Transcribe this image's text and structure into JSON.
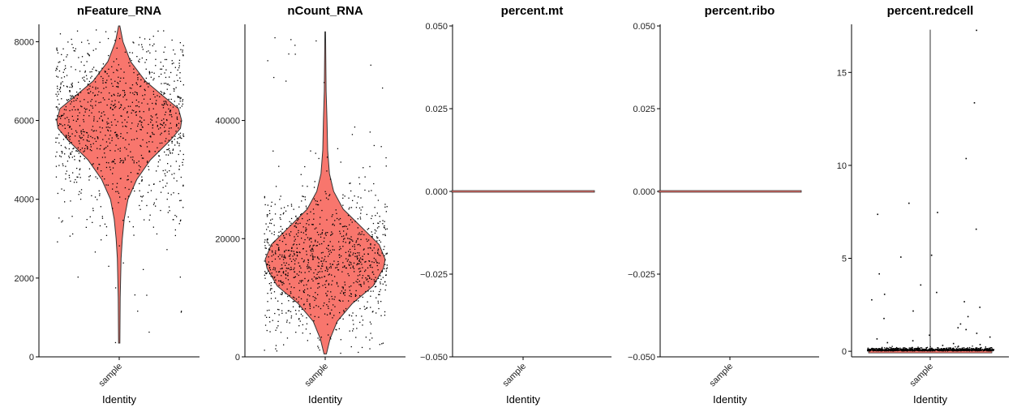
{
  "chart_data": [
    {
      "type": "violin",
      "title": "nFeature_RNA",
      "xlabel": "Identity",
      "categories": [
        "sample"
      ],
      "ylim": [
        0,
        8400
      ],
      "yticks": [
        0,
        2000,
        4000,
        6000,
        8000
      ],
      "ytick_labels": [
        "0",
        "2000",
        "4000",
        "6000",
        "8000"
      ],
      "violin": {
        "min": 350,
        "max": 8400,
        "profile": [
          [
            350,
            0.01
          ],
          [
            1500,
            0.015
          ],
          [
            2500,
            0.03
          ],
          [
            3000,
            0.05
          ],
          [
            3500,
            0.08
          ],
          [
            4000,
            0.14
          ],
          [
            4500,
            0.28
          ],
          [
            5000,
            0.5
          ],
          [
            5500,
            0.82
          ],
          [
            5800,
            0.98
          ],
          [
            6000,
            1.0
          ],
          [
            6300,
            0.95
          ],
          [
            6600,
            0.72
          ],
          [
            7000,
            0.42
          ],
          [
            7500,
            0.18
          ],
          [
            8000,
            0.06
          ],
          [
            8400,
            0.01
          ]
        ]
      },
      "points": {
        "center": 6000,
        "spread": 1200,
        "min": 350,
        "max": 8400
      }
    },
    {
      "type": "violin",
      "title": "nCount_RNA",
      "xlabel": "Identity",
      "categories": [
        "sample"
      ],
      "ylim": [
        0,
        56000
      ],
      "yticks": [
        0,
        20000,
        40000
      ],
      "ytick_labels": [
        "0",
        "20000",
        "40000"
      ],
      "violin": {
        "min": 500,
        "max": 55000,
        "profile": [
          [
            500,
            0.02
          ],
          [
            3000,
            0.08
          ],
          [
            6000,
            0.2
          ],
          [
            9000,
            0.45
          ],
          [
            12000,
            0.8
          ],
          [
            15000,
            0.97
          ],
          [
            16500,
            1.0
          ],
          [
            19000,
            0.9
          ],
          [
            22000,
            0.6
          ],
          [
            25000,
            0.3
          ],
          [
            28000,
            0.14
          ],
          [
            31000,
            0.07
          ],
          [
            35000,
            0.04
          ],
          [
            40000,
            0.03
          ],
          [
            45000,
            0.015
          ],
          [
            55000,
            0.005
          ]
        ]
      },
      "points": {
        "center": 16000,
        "spread": 6500,
        "min": 500,
        "max": 55000
      }
    },
    {
      "type": "violin",
      "title": "percent.mt",
      "xlabel": "Identity",
      "categories": [
        "sample"
      ],
      "ylim": [
        -0.05,
        0.05
      ],
      "yticks": [
        -0.05,
        -0.025,
        0,
        0.025,
        0.05
      ],
      "ytick_labels": [
        "−0.050",
        "−0.025",
        "0.000",
        "0.025",
        "0.050"
      ],
      "violin": {
        "min": 0,
        "max": 0,
        "profile": []
      },
      "points": {
        "center": 0,
        "spread": 0,
        "min": 0,
        "max": 0
      }
    },
    {
      "type": "violin",
      "title": "percent.ribo",
      "xlabel": "Identity",
      "categories": [
        "sample"
      ],
      "ylim": [
        -0.05,
        0.05
      ],
      "yticks": [
        -0.05,
        -0.025,
        0,
        0.025,
        0.05
      ],
      "ytick_labels": [
        "−0.050",
        "−0.025",
        "0.000",
        "0.025",
        "0.050"
      ],
      "violin": {
        "min": 0,
        "max": 0,
        "profile": []
      },
      "points": {
        "center": 0,
        "spread": 0,
        "min": 0,
        "max": 0
      }
    },
    {
      "type": "violin",
      "title": "percent.redcell",
      "xlabel": "Identity",
      "categories": [
        "sample"
      ],
      "ylim": [
        -0.3,
        17.5
      ],
      "yticks": [
        0,
        5,
        10,
        15
      ],
      "ytick_labels": [
        "0",
        "5",
        "10",
        "15"
      ],
      "violin": {
        "min": 0,
        "max": 17.3,
        "profile": []
      },
      "points": {
        "center": 0,
        "spread": 0,
        "min": 0,
        "max": 17.3
      },
      "outliers": [
        17.3,
        13.4,
        10.4,
        8.0,
        7.5,
        7.4,
        6.6,
        5.2,
        5.1,
        4.2,
        3.6,
        3.2,
        3.1,
        2.8,
        2.7,
        2.4,
        2.2,
        1.9,
        1.8,
        1.5,
        1.3,
        1.2,
        1.0,
        0.9,
        0.8,
        0.7,
        0.6,
        0.5,
        0.45,
        0.4,
        0.35,
        0.3
      ]
    }
  ],
  "colors": {
    "fill": "#f8766d",
    "outline": "#333333",
    "point": "#000000"
  }
}
